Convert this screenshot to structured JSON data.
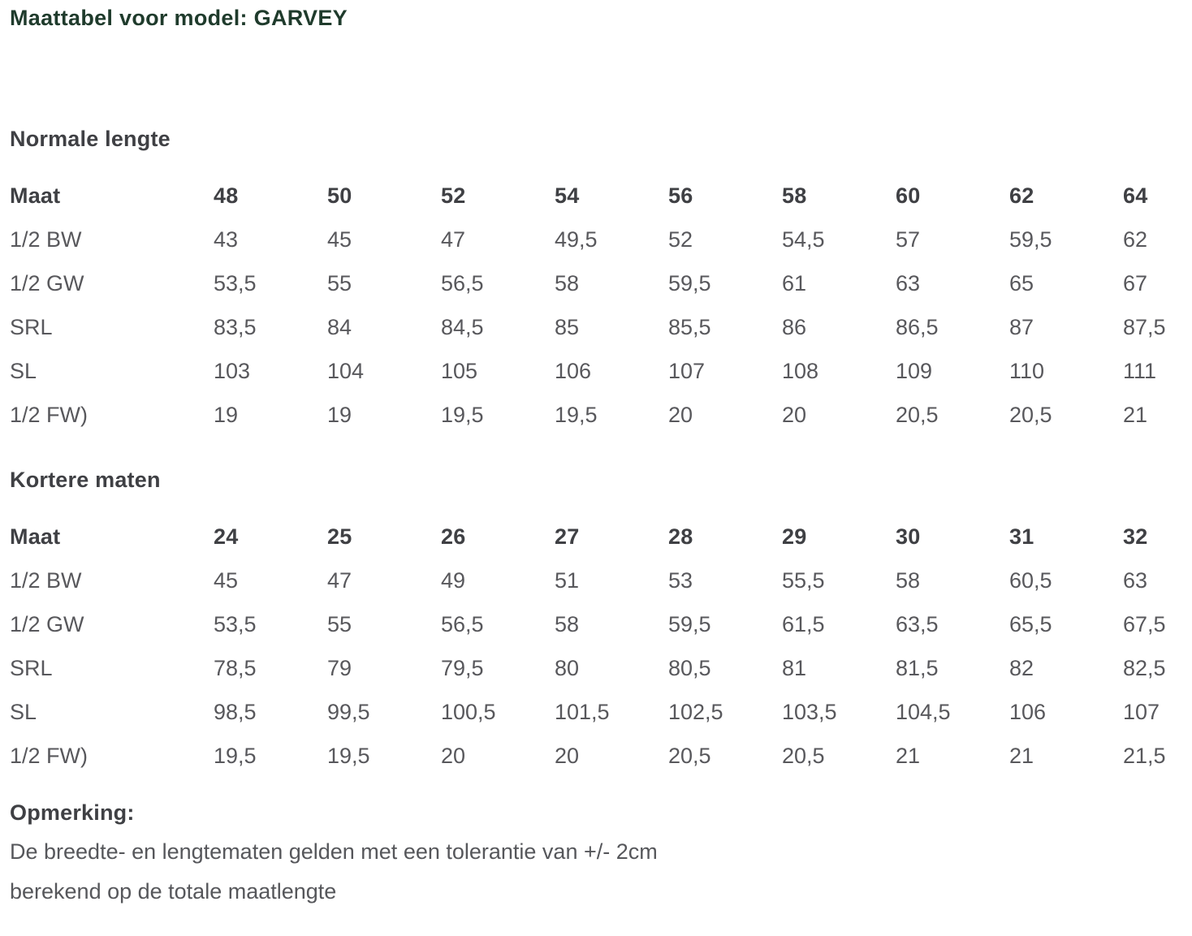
{
  "page": {
    "title": "Maattabel voor model: GARVEY"
  },
  "colors": {
    "title": "#1f3b2c",
    "heading": "#3f4044",
    "text": "#58585c",
    "background": "#ffffff"
  },
  "tables": [
    {
      "section_heading": "Normale lengte",
      "header_label": "Maat",
      "sizes": [
        "48",
        "50",
        "52",
        "54",
        "56",
        "58",
        "60",
        "62",
        "64"
      ],
      "rows": [
        {
          "label": "1/2 BW",
          "values": [
            "43",
            "45",
            "47",
            "49,5",
            "52",
            "54,5",
            "57",
            "59,5",
            "62"
          ]
        },
        {
          "label": "1/2 GW",
          "values": [
            "53,5",
            "55",
            "56,5",
            "58",
            "59,5",
            "61",
            "63",
            "65",
            "67"
          ]
        },
        {
          "label": "SRL",
          "values": [
            "83,5",
            "84",
            "84,5",
            "85",
            "85,5",
            "86",
            "86,5",
            "87",
            "87,5"
          ]
        },
        {
          "label": "SL",
          "values": [
            "103",
            "104",
            "105",
            "106",
            "107",
            "108",
            "109",
            "110",
            "111"
          ]
        },
        {
          "label": "1/2 FW)",
          "values": [
            "19",
            "19",
            "19,5",
            "19,5",
            "20",
            "20",
            "20,5",
            "20,5",
            "21"
          ]
        }
      ]
    },
    {
      "section_heading": "Kortere maten",
      "header_label": "Maat",
      "sizes": [
        "24",
        "25",
        "26",
        "27",
        "28",
        "29",
        "30",
        "31",
        "32"
      ],
      "rows": [
        {
          "label": "1/2 BW",
          "values": [
            "45",
            "47",
            "49",
            "51",
            "53",
            "55,5",
            "58",
            "60,5",
            "63"
          ]
        },
        {
          "label": "1/2 GW",
          "values": [
            "53,5",
            "55",
            "56,5",
            "58",
            "59,5",
            "61,5",
            "63,5",
            "65,5",
            "67,5"
          ]
        },
        {
          "label": "SRL",
          "values": [
            "78,5",
            "79",
            "79,5",
            "80",
            "80,5",
            "81",
            "81,5",
            "82",
            "82,5"
          ]
        },
        {
          "label": "SL",
          "values": [
            "98,5",
            "99,5",
            "100,5",
            "101,5",
            "102,5",
            "103,5",
            "104,5",
            "106",
            "107"
          ]
        },
        {
          "label": "1/2 FW)",
          "values": [
            "19,5",
            "19,5",
            "20",
            "20",
            "20,5",
            "20,5",
            "21",
            "21",
            "21,5"
          ]
        }
      ]
    }
  ],
  "note": {
    "heading": "Opmerking:",
    "lines": [
      "De breedte- en lengtematen gelden met een tolerantie van +/- 2cm",
      "berekend op de totale maatlengte"
    ]
  }
}
